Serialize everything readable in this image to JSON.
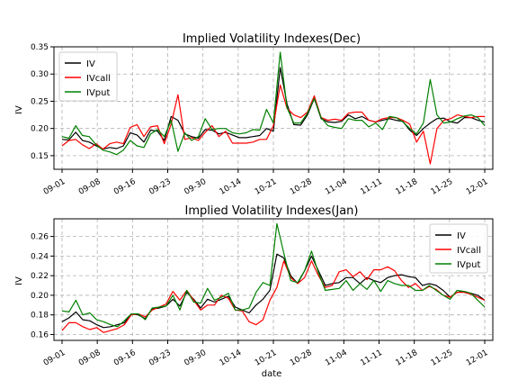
{
  "chart_data": [
    {
      "type": "line",
      "title": "Implied Volatility Indexes(Dec)",
      "xlabel": "",
      "ylabel": "IV",
      "ylim": [
        0.125,
        0.35
      ],
      "yticks": [
        "0.15",
        "0.20",
        "0.25",
        "0.30",
        "0.35"
      ],
      "ytick_values": [
        0.15,
        0.2,
        0.25,
        0.3,
        0.35
      ],
      "xticks": [
        "09-01",
        "09-08",
        "09-16",
        "09-23",
        "09-30",
        "10-14",
        "10-21",
        "10-28",
        "11-04",
        "11-11",
        "11-18",
        "11-25",
        "12-01"
      ],
      "legend_position": "top-left",
      "grid": true,
      "series": [
        {
          "name": "IV",
          "color": "#000000",
          "values": [
            0.18,
            0.179,
            0.193,
            0.178,
            0.175,
            0.168,
            0.162,
            0.165,
            0.163,
            0.168,
            0.192,
            0.188,
            0.175,
            0.197,
            0.195,
            0.178,
            0.222,
            0.215,
            0.19,
            0.185,
            0.182,
            0.198,
            0.197,
            0.19,
            0.193,
            0.188,
            0.183,
            0.183,
            0.185,
            0.187,
            0.2,
            0.195,
            0.312,
            0.245,
            0.207,
            0.206,
            0.225,
            0.255,
            0.218,
            0.212,
            0.211,
            0.213,
            0.225,
            0.218,
            0.222,
            0.215,
            0.212,
            0.215,
            0.218,
            0.215,
            0.213,
            0.197,
            0.187,
            0.2,
            0.21,
            0.218,
            0.219,
            0.212,
            0.21,
            0.22,
            0.22,
            0.215,
            0.212
          ]
        },
        {
          "name": "IVcall",
          "color": "#ff0000",
          "values": [
            0.168,
            0.178,
            0.18,
            0.17,
            0.163,
            0.172,
            0.162,
            0.172,
            0.175,
            0.172,
            0.202,
            0.207,
            0.185,
            0.203,
            0.205,
            0.172,
            0.208,
            0.262,
            0.18,
            0.183,
            0.178,
            0.193,
            0.205,
            0.185,
            0.195,
            0.173,
            0.173,
            0.173,
            0.175,
            0.18,
            0.18,
            0.205,
            0.28,
            0.237,
            0.225,
            0.22,
            0.23,
            0.26,
            0.22,
            0.215,
            0.217,
            0.215,
            0.228,
            0.23,
            0.23,
            0.215,
            0.212,
            0.218,
            0.22,
            0.22,
            0.215,
            0.208,
            0.175,
            0.195,
            0.135,
            0.2,
            0.215,
            0.218,
            0.225,
            0.222,
            0.22,
            0.222,
            0.222
          ]
        },
        {
          "name": "IVput",
          "color": "#008000",
          "values": [
            0.185,
            0.182,
            0.205,
            0.187,
            0.185,
            0.17,
            0.16,
            0.157,
            0.152,
            0.16,
            0.178,
            0.168,
            0.165,
            0.19,
            0.198,
            0.185,
            0.215,
            0.158,
            0.192,
            0.178,
            0.185,
            0.218,
            0.198,
            0.2,
            0.2,
            0.192,
            0.19,
            0.192,
            0.198,
            0.197,
            0.235,
            0.21,
            0.34,
            0.238,
            0.21,
            0.21,
            0.228,
            0.255,
            0.22,
            0.205,
            0.202,
            0.2,
            0.218,
            0.215,
            0.215,
            0.203,
            0.21,
            0.198,
            0.222,
            0.22,
            0.212,
            0.2,
            0.19,
            0.21,
            0.29,
            0.225,
            0.21,
            0.212,
            0.218,
            0.223,
            0.225,
            0.22,
            0.205
          ]
        }
      ]
    },
    {
      "type": "line",
      "title": "Implied Volatility Indexes(Jan)",
      "xlabel": "date",
      "ylabel": "IV",
      "ylim": [
        0.154,
        0.278
      ],
      "yticks": [
        "0.16",
        "0.18",
        "0.20",
        "0.22",
        "0.24",
        "0.26"
      ],
      "ytick_values": [
        0.16,
        0.18,
        0.2,
        0.22,
        0.24,
        0.26
      ],
      "xticks": [
        "09-01",
        "09-08",
        "09-16",
        "09-23",
        "09-30",
        "10-14",
        "10-21",
        "10-28",
        "11-04",
        "11-11",
        "11-18",
        "11-25",
        "12-01"
      ],
      "legend_position": "top-right",
      "grid": true,
      "series": [
        {
          "name": "IV",
          "color": "#000000",
          "values": [
            0.173,
            0.177,
            0.183,
            0.175,
            0.174,
            0.17,
            0.167,
            0.168,
            0.17,
            0.172,
            0.181,
            0.18,
            0.176,
            0.186,
            0.187,
            0.189,
            0.196,
            0.189,
            0.203,
            0.196,
            0.187,
            0.196,
            0.193,
            0.196,
            0.199,
            0.188,
            0.185,
            0.182,
            0.19,
            0.196,
            0.205,
            0.242,
            0.238,
            0.22,
            0.212,
            0.225,
            0.24,
            0.225,
            0.21,
            0.212,
            0.213,
            0.218,
            0.218,
            0.212,
            0.218,
            0.215,
            0.213,
            0.218,
            0.22,
            0.221,
            0.219,
            0.218,
            0.21,
            0.212,
            0.21,
            0.205,
            0.198,
            0.203,
            0.204,
            0.202,
            0.2,
            0.195
          ]
        },
        {
          "name": "IVcall",
          "color": "#ff0000",
          "values": [
            0.164,
            0.172,
            0.172,
            0.168,
            0.165,
            0.167,
            0.162,
            0.164,
            0.166,
            0.17,
            0.18,
            0.181,
            0.178,
            0.185,
            0.188,
            0.191,
            0.204,
            0.195,
            0.205,
            0.195,
            0.185,
            0.19,
            0.19,
            0.2,
            0.197,
            0.185,
            0.184,
            0.173,
            0.17,
            0.175,
            0.195,
            0.208,
            0.235,
            0.218,
            0.212,
            0.218,
            0.235,
            0.22,
            0.208,
            0.21,
            0.224,
            0.226,
            0.219,
            0.224,
            0.216,
            0.226,
            0.226,
            0.229,
            0.225,
            0.215,
            0.208,
            0.212,
            0.205,
            0.209,
            0.206,
            0.2,
            0.198,
            0.203,
            0.203,
            0.201,
            0.198,
            0.195
          ]
        },
        {
          "name": "IVput",
          "color": "#008000",
          "values": [
            0.184,
            0.183,
            0.195,
            0.18,
            0.182,
            0.175,
            0.173,
            0.17,
            0.168,
            0.174,
            0.181,
            0.181,
            0.175,
            0.187,
            0.188,
            0.189,
            0.2,
            0.185,
            0.205,
            0.193,
            0.192,
            0.207,
            0.195,
            0.198,
            0.202,
            0.185,
            0.185,
            0.187,
            0.203,
            0.213,
            0.21,
            0.273,
            0.243,
            0.215,
            0.213,
            0.225,
            0.245,
            0.223,
            0.205,
            0.206,
            0.207,
            0.215,
            0.205,
            0.212,
            0.206,
            0.215,
            0.204,
            0.215,
            0.212,
            0.21,
            0.21,
            0.205,
            0.205,
            0.21,
            0.205,
            0.2,
            0.196,
            0.205,
            0.204,
            0.202,
            0.195,
            0.188
          ]
        }
      ]
    }
  ]
}
